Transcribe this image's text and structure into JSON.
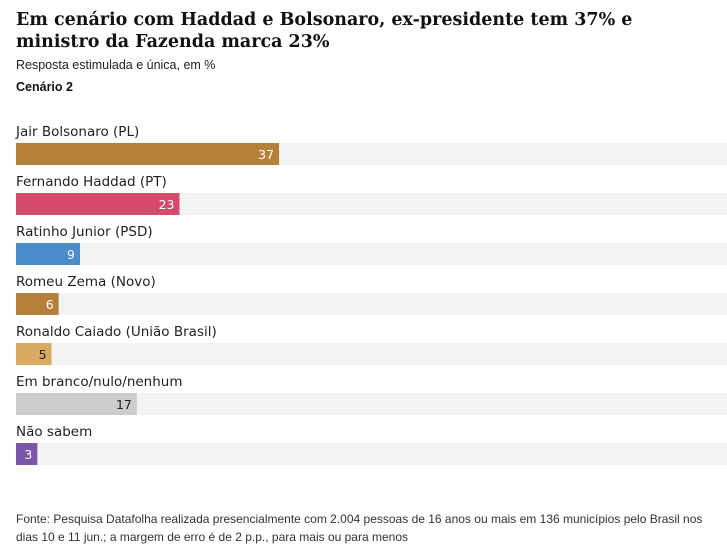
{
  "title": "Em cenário com Haddad e Bolsonaro, ex-presidente tem 37% e ministro da Fazenda marca 23%",
  "subtitle": "Resposta estimulada e única, em %",
  "scenario": "Cenário 2",
  "source": "Fonte: Pesquisa Datafolha realizada presencialmente com 2.004 pessoas de 16 anos ou mais em 136 municípios pelo Brasil nos dias 10 e 11 jun.; a margem de erro é de 2 p.p., para mais ou para menos",
  "chart_data": {
    "type": "bar",
    "orientation": "horizontal",
    "categories": [
      "Jair Bolsonaro (PL)",
      "Fernando Haddad (PT)",
      "Ratinho Junior (PSD)",
      "Romeu Zema (Novo)",
      "Ronaldo Caiado (União Brasil)",
      "Em branco/nulo/nenhum",
      "Não sabem"
    ],
    "values": [
      37,
      23,
      9,
      6,
      5,
      17,
      3
    ],
    "colors": [
      "#b5813a",
      "#d44a6a",
      "#4a8ccc",
      "#b5813a",
      "#d9ab62",
      "#cccccc",
      "#7b55a8"
    ],
    "value_label_colors": [
      "#ffffff",
      "#ffffff",
      "#ffffff",
      "#ffffff",
      "#222222",
      "#222222",
      "#ffffff"
    ],
    "track_color": "#f3f3f3",
    "xlim": [
      0,
      100
    ],
    "grid": false,
    "legend": "none"
  }
}
